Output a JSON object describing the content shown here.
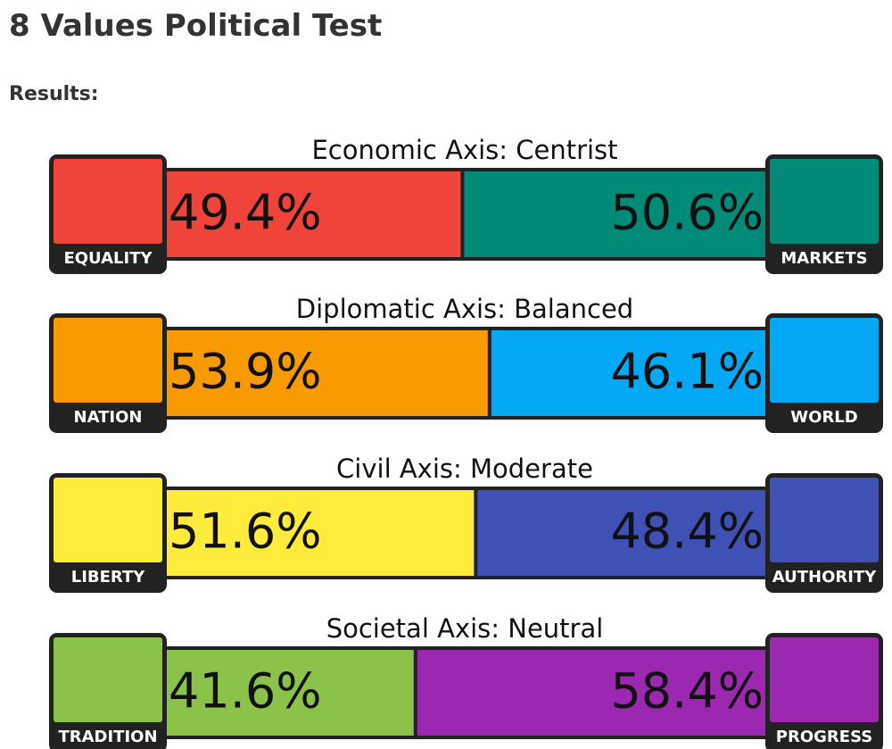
{
  "header": {
    "title": "8 Values Political Test",
    "subtitle": "Results:"
  },
  "axes": [
    {
      "title": "Economic Axis: Centrist",
      "left": {
        "label": "EQUALITY",
        "value": 49.4,
        "value_label": "49.4%",
        "color": "#f0443a"
      },
      "right": {
        "label": "MARKETS",
        "value": 50.6,
        "value_label": "50.6%",
        "color": "#008a78"
      }
    },
    {
      "title": "Diplomatic Axis: Balanced",
      "left": {
        "label": "NATION",
        "value": 53.9,
        "value_label": "53.9%",
        "color": "#f89a00"
      },
      "right": {
        "label": "WORLD",
        "value": 46.1,
        "value_label": "46.1%",
        "color": "#03a9f4"
      }
    },
    {
      "title": "Civil Axis: Moderate",
      "left": {
        "label": "LIBERTY",
        "value": 51.6,
        "value_label": "51.6%",
        "color": "#ffeb3b"
      },
      "right": {
        "label": "AUTHORITY",
        "value": 48.4,
        "value_label": "48.4%",
        "color": "#3f51b5"
      }
    },
    {
      "title": "Societal Axis: Neutral",
      "left": {
        "label": "TRADITION",
        "value": 41.6,
        "value_label": "41.6%",
        "color": "#8bc34a"
      },
      "right": {
        "label": "PROGRESS",
        "value": 58.4,
        "value_label": "58.4%",
        "color": "#9c27b0"
      }
    }
  ]
}
